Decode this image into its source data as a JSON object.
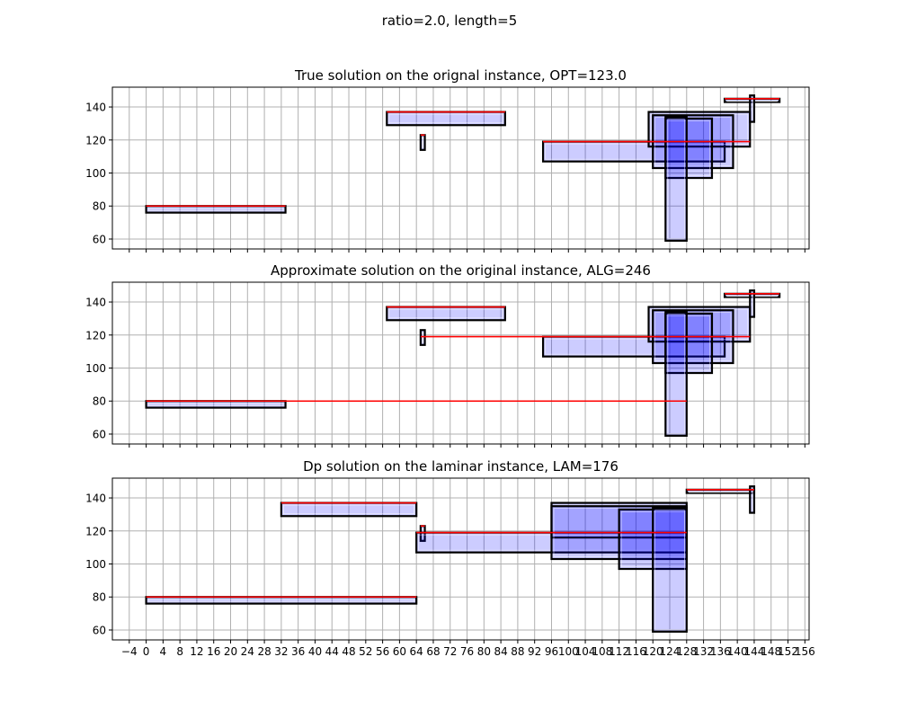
{
  "figure": {
    "suptitle": "ratio=2.0, length=5"
  },
  "colors": {
    "fill": "#0000ff",
    "edge": "#000000",
    "line": "#ff0000",
    "grid": "#b0b0b0"
  },
  "chart_data": [
    {
      "type": "rectangles",
      "title": "True solution on the orignal instance, OPT=123.0",
      "xlim": [
        -8,
        157
      ],
      "ylim": [
        54,
        152
      ],
      "xticks": [
        -4,
        0,
        4,
        8,
        12,
        16,
        20,
        24,
        28,
        32,
        36,
        40,
        44,
        48,
        52,
        56,
        60,
        64,
        68,
        72,
        76,
        80,
        84,
        88,
        92,
        96,
        100,
        104,
        108,
        112,
        116,
        120,
        124,
        128,
        132,
        136,
        140,
        144,
        148,
        152,
        156
      ],
      "yticks": [
        60,
        80,
        100,
        120,
        140
      ],
      "show_xticklabels": false,
      "grid": true,
      "rects": [
        {
          "x": 0,
          "y": 76,
          "w": 33,
          "h": 4
        },
        {
          "x": 57,
          "y": 129,
          "w": 28,
          "h": 8
        },
        {
          "x": 65,
          "y": 114,
          "w": 1,
          "h": 9
        },
        {
          "x": 94,
          "y": 107,
          "w": 43,
          "h": 12
        },
        {
          "x": 119,
          "y": 116,
          "w": 24,
          "h": 21
        },
        {
          "x": 120,
          "y": 103,
          "w": 19,
          "h": 32
        },
        {
          "x": 123,
          "y": 97,
          "w": 11,
          "h": 36
        },
        {
          "x": 123,
          "y": 59,
          "w": 5,
          "h": 75
        },
        {
          "x": 137,
          "y": 143,
          "w": 13,
          "h": 2
        },
        {
          "x": 143,
          "y": 131,
          "w": 1,
          "h": 16
        }
      ],
      "lines": [
        {
          "x0": 0,
          "x1": 33,
          "y": 80
        },
        {
          "x0": 57,
          "x1": 85,
          "y": 137
        },
        {
          "x0": 65,
          "x1": 66,
          "y": 123
        },
        {
          "x0": 94,
          "x1": 143,
          "y": 119
        },
        {
          "x0": 137,
          "x1": 150,
          "y": 145
        }
      ]
    },
    {
      "type": "rectangles",
      "title": "Approximate solution on the original instance, ALG=246",
      "xlim": [
        -8,
        157
      ],
      "ylim": [
        54,
        152
      ],
      "xticks": [
        -4,
        0,
        4,
        8,
        12,
        16,
        20,
        24,
        28,
        32,
        36,
        40,
        44,
        48,
        52,
        56,
        60,
        64,
        68,
        72,
        76,
        80,
        84,
        88,
        92,
        96,
        100,
        104,
        108,
        112,
        116,
        120,
        124,
        128,
        132,
        136,
        140,
        144,
        148,
        152,
        156
      ],
      "yticks": [
        60,
        80,
        100,
        120,
        140
      ],
      "show_xticklabels": false,
      "grid": true,
      "rects": [
        {
          "x": 0,
          "y": 76,
          "w": 33,
          "h": 4
        },
        {
          "x": 57,
          "y": 129,
          "w": 28,
          "h": 8
        },
        {
          "x": 65,
          "y": 114,
          "w": 1,
          "h": 9
        },
        {
          "x": 94,
          "y": 107,
          "w": 43,
          "h": 12
        },
        {
          "x": 119,
          "y": 116,
          "w": 24,
          "h": 21
        },
        {
          "x": 120,
          "y": 103,
          "w": 19,
          "h": 32
        },
        {
          "x": 123,
          "y": 97,
          "w": 11,
          "h": 36
        },
        {
          "x": 123,
          "y": 59,
          "w": 5,
          "h": 75
        },
        {
          "x": 137,
          "y": 143,
          "w": 13,
          "h": 2
        },
        {
          "x": 143,
          "y": 131,
          "w": 1,
          "h": 16
        }
      ],
      "lines": [
        {
          "x0": 0,
          "x1": 128,
          "y": 80
        },
        {
          "x0": 57,
          "x1": 85,
          "y": 137
        },
        {
          "x0": 65,
          "x1": 143,
          "y": 119
        },
        {
          "x0": 137,
          "x1": 150,
          "y": 145
        }
      ]
    },
    {
      "type": "rectangles",
      "title": "Dp solution on the laminar instance, LAM=176",
      "xlim": [
        -8,
        157
      ],
      "ylim": [
        54,
        152
      ],
      "xticks": [
        -4,
        0,
        4,
        8,
        12,
        16,
        20,
        24,
        28,
        32,
        36,
        40,
        44,
        48,
        52,
        56,
        60,
        64,
        68,
        72,
        76,
        80,
        84,
        88,
        92,
        96,
        100,
        104,
        108,
        112,
        116,
        120,
        124,
        128,
        132,
        136,
        140,
        144,
        148,
        152,
        156
      ],
      "yticks": [
        60,
        80,
        100,
        120,
        140
      ],
      "show_xticklabels": true,
      "grid": true,
      "rects": [
        {
          "x": 0,
          "y": 76,
          "w": 64,
          "h": 4
        },
        {
          "x": 32,
          "y": 129,
          "w": 32,
          "h": 8
        },
        {
          "x": 65,
          "y": 114,
          "w": 1,
          "h": 9
        },
        {
          "x": 64,
          "y": 107,
          "w": 64,
          "h": 12
        },
        {
          "x": 96,
          "y": 116,
          "w": 32,
          "h": 21
        },
        {
          "x": 96,
          "y": 103,
          "w": 32,
          "h": 32
        },
        {
          "x": 112,
          "y": 97,
          "w": 16,
          "h": 36
        },
        {
          "x": 120,
          "y": 59,
          "w": 8,
          "h": 75
        },
        {
          "x": 128,
          "y": 143,
          "w": 16,
          "h": 2
        },
        {
          "x": 143,
          "y": 131,
          "w": 1,
          "h": 16
        }
      ],
      "lines": [
        {
          "x0": 0,
          "x1": 64,
          "y": 80
        },
        {
          "x0": 32,
          "x1": 64,
          "y": 137
        },
        {
          "x0": 65,
          "x1": 66,
          "y": 123
        },
        {
          "x0": 64,
          "x1": 128,
          "y": 119
        },
        {
          "x0": 128,
          "x1": 144,
          "y": 145
        }
      ]
    }
  ]
}
